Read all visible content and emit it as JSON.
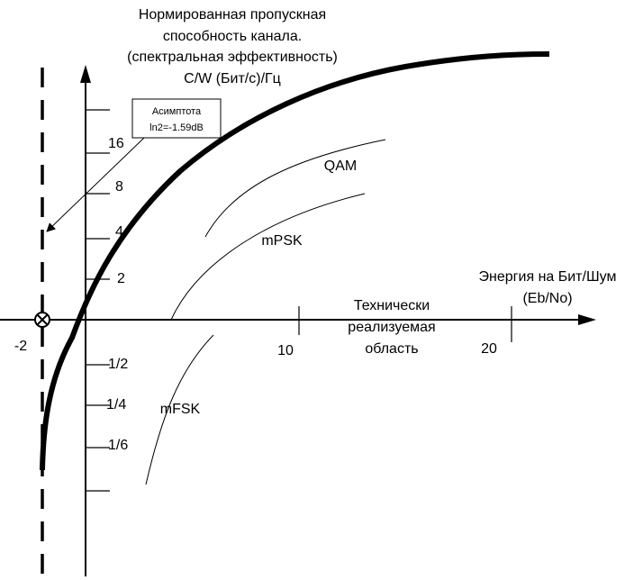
{
  "y_axis_title": [
    "Нормированная пропускная",
    "способность канала.",
    "(спектральная эффективность)",
    "C/W (Бит/с)/Гц"
  ],
  "x_axis_title": [
    "Энергия на Бит/Шум",
    "(Eb/No)"
  ],
  "asymptote_note": [
    "Асимптота",
    "ln2=-1.59dB"
  ],
  "y_labels": [
    "16",
    "8",
    "4",
    "2",
    "1/2",
    "1/4",
    "1/6"
  ],
  "x_labels": [
    "-2",
    "10",
    "20"
  ],
  "region_label": [
    "Технически",
    "реализуемая",
    "область"
  ],
  "curve_labels": [
    "QAM",
    "mPSK",
    "mFSK"
  ]
}
